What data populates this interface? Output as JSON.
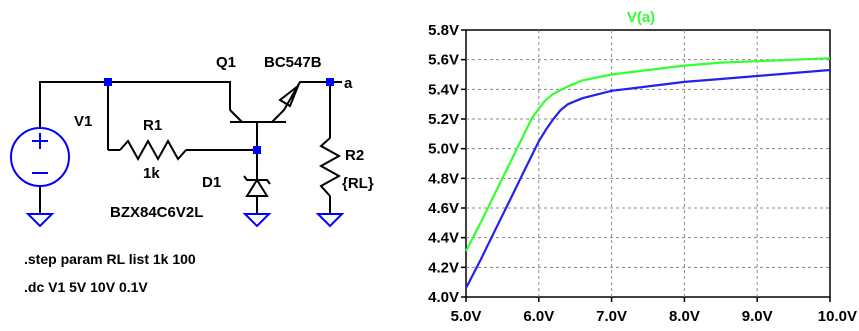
{
  "schematic": {
    "v1_label": "V1",
    "r1_label": "R1",
    "r1_value": "1k",
    "q1_label": "Q1",
    "q1_model": "BC547B",
    "node_label": "a",
    "d1_label": "D1",
    "d1_model": "BZX84C6V2L",
    "r2_label": "R2",
    "r2_value": "{RL}",
    "directive_step": ".step param RL list 1k 100",
    "directive_dc": ".dc V1 5V 10V 0.1V",
    "wire_color": "#000000",
    "junction_color": "#0000ff",
    "ground_color": "#0000ff"
  },
  "chart_data": {
    "type": "line",
    "title": "V(a)",
    "title_color": "#33ff33",
    "x_ticks": [
      "5.0V",
      "6.0V",
      "7.0V",
      "8.0V",
      "9.0V",
      "10.0V"
    ],
    "y_ticks": [
      "4.0V",
      "4.2V",
      "4.4V",
      "4.6V",
      "4.8V",
      "5.0V",
      "5.2V",
      "5.4V",
      "5.6V",
      "5.8V"
    ],
    "xlim": [
      5.0,
      10.0
    ],
    "ylim": [
      4.0,
      5.8
    ],
    "grid": true,
    "series": [
      {
        "color": "#33ff33",
        "x": [
          5.0,
          5.2,
          5.4,
          5.6,
          5.8,
          5.9,
          6.0,
          6.1,
          6.2,
          6.4,
          6.6,
          7.0,
          7.5,
          8.0,
          8.5,
          9.0,
          9.5,
          10.0
        ],
        "y": [
          4.31,
          4.5,
          4.7,
          4.9,
          5.1,
          5.2,
          5.27,
          5.33,
          5.37,
          5.42,
          5.46,
          5.5,
          5.53,
          5.56,
          5.58,
          5.59,
          5.6,
          5.61
        ]
      },
      {
        "color": "#2222ee",
        "x": [
          5.0,
          5.2,
          5.4,
          5.6,
          5.8,
          6.0,
          6.1,
          6.2,
          6.3,
          6.4,
          6.6,
          7.0,
          7.5,
          8.0,
          8.5,
          9.0,
          9.5,
          10.0
        ],
        "y": [
          4.06,
          4.25,
          4.45,
          4.65,
          4.85,
          5.05,
          5.13,
          5.2,
          5.26,
          5.3,
          5.34,
          5.39,
          5.42,
          5.45,
          5.47,
          5.49,
          5.51,
          5.53
        ]
      }
    ]
  }
}
